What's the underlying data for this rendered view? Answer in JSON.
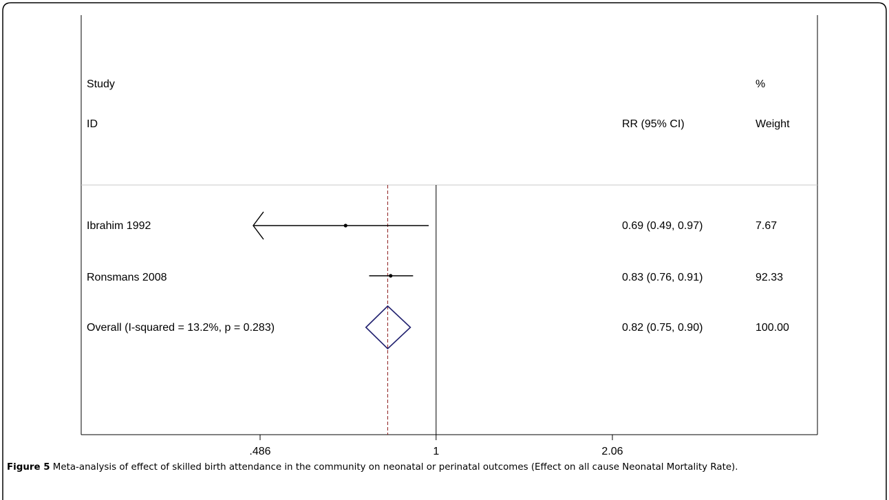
{
  "figure": {
    "caption_label": "Figure 5",
    "caption_text": " Meta-analysis of effect of skilled birth attendance in the community on neonatal or perinatal outcomes (Effect on all cause Neonatal Mortality Rate)."
  },
  "chart_data": {
    "type": "forest",
    "scale": "log",
    "headers": {
      "study": "Study",
      "id": "ID",
      "effect": "RR (95% CI)",
      "weight_pct": "%",
      "weight": "Weight"
    },
    "x_ticks": [
      {
        "value": 0.486,
        "label": ".486"
      },
      {
        "value": 1,
        "label": "1"
      },
      {
        "value": 2.06,
        "label": "2.06"
      }
    ],
    "null_line": 1,
    "overall_line": 0.82,
    "studies": [
      {
        "name": "Ibrahim 1992",
        "rr": 0.69,
        "lo": 0.49,
        "hi": 0.97,
        "ci_text": "0.69 (0.49, 0.97)",
        "weight": "7.67",
        "lo_clipped": true
      },
      {
        "name": "Ronsmans 2008",
        "rr": 0.83,
        "lo": 0.76,
        "hi": 0.91,
        "ci_text": "0.83 (0.76, 0.91)",
        "weight": "92.33",
        "lo_clipped": false
      }
    ],
    "overall": {
      "name": "Overall  (I-squared = 13.2%, p = 0.283)",
      "rr": 0.82,
      "lo": 0.75,
      "hi": 0.9,
      "ci_text": "0.82 (0.75, 0.90)",
      "weight": "100.00"
    },
    "colors": {
      "axis": "#000000",
      "diamond": "#1f1f6e",
      "overall_line": "#8b1a1a",
      "separator": "#c8c8c8"
    }
  }
}
